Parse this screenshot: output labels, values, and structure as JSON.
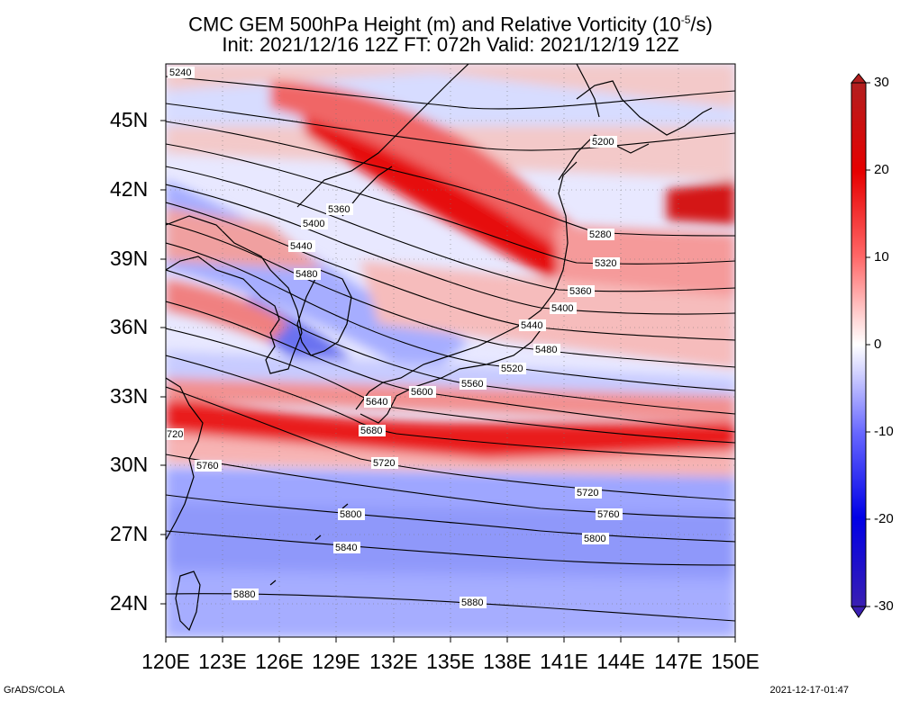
{
  "title": {
    "line1": "CMC GEM 500hPa Height (m) and Relative Vorticity (10",
    "line1_sup": "-5",
    "line1_end": "/s)",
    "line2": "Init: 2021/12/16 12Z  FT: 072h  Valid: 2021/12/19 12Z"
  },
  "lat_labels": [
    "45N",
    "42N",
    "39N",
    "36N",
    "33N",
    "30N",
    "27N",
    "24N"
  ],
  "lon_labels": [
    "120E",
    "123E",
    "126E",
    "129E",
    "132E",
    "135E",
    "138E",
    "141E",
    "144E",
    "147E",
    "150E"
  ],
  "colorbar": {
    "labels": [
      "30",
      "20",
      "10",
      "0",
      "-10",
      "-20",
      "-30"
    ],
    "colors": [
      "#b21f1f",
      "#e60000",
      "#ff6666",
      "#ffb3b3",
      "#ffffff",
      "#b3b3ff",
      "#6666ff",
      "#0000e6",
      "#1f1fb2"
    ]
  },
  "contours": [
    {
      "value": "5200",
      "label": "5200"
    },
    {
      "value": "5240",
      "label": "5240"
    },
    {
      "value": "5280",
      "label": "5280"
    },
    {
      "value": "5320",
      "label": "5320"
    },
    {
      "value": "5360",
      "label": "5360"
    },
    {
      "value": "5400",
      "label": "5400"
    },
    {
      "value": "5440",
      "label": "5440"
    },
    {
      "value": "5480",
      "label": "5480"
    },
    {
      "value": "5520",
      "label": "5520"
    },
    {
      "value": "5560",
      "label": "5560"
    },
    {
      "value": "5600",
      "label": "5600"
    },
    {
      "value": "5640",
      "label": "5640"
    },
    {
      "value": "5680",
      "label": "5680"
    },
    {
      "value": "5720",
      "label": "5720"
    },
    {
      "value": "5760",
      "label": "5760"
    },
    {
      "value": "5800",
      "label": "5800"
    },
    {
      "value": "5840",
      "label": "5840"
    },
    {
      "value": "5880",
      "label": "5880"
    },
    {
      "value": "720",
      "label": "720"
    }
  ],
  "footer": {
    "left": "GrADS/COLA",
    "right": "2021-12-17-01:47"
  }
}
